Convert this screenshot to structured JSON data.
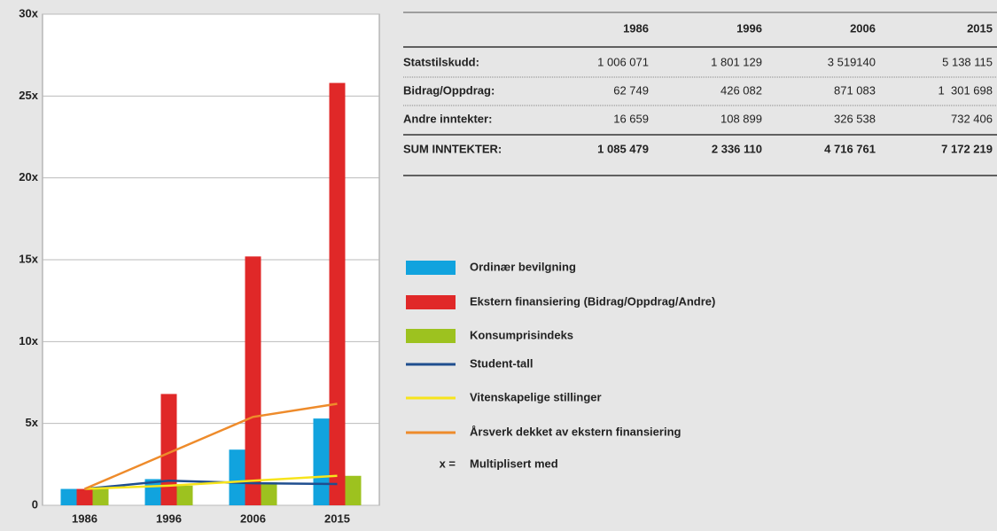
{
  "chart_data": {
    "type": "bar",
    "categories": [
      "1986",
      "1996",
      "2006",
      "2015"
    ],
    "series": [
      {
        "name": "Ordinær bevilgning",
        "type": "bar",
        "color": "#11a3de",
        "values": [
          1,
          1.6,
          3.4,
          5.3
        ]
      },
      {
        "name": "Ekstern finansiering (Bidrag/Oppdrag/Andre)",
        "type": "bar",
        "color": "#e02828",
        "values": [
          1,
          6.8,
          15.2,
          25.8
        ]
      },
      {
        "name": "Konsumprisindeks",
        "type": "bar",
        "color": "#9dc21f",
        "values": [
          1,
          1.2,
          1.4,
          1.8
        ]
      },
      {
        "name": "Student-tall",
        "type": "line",
        "color": "#1f4e8f",
        "values": [
          1,
          1.5,
          1.35,
          1.3
        ]
      },
      {
        "name": "Vitenskapelige stillinger",
        "type": "line",
        "color": "#f7e41c",
        "values": [
          1,
          1.2,
          1.5,
          1.8
        ]
      },
      {
        "name": "Årsverk dekket av ekstern finansiering",
        "type": "line",
        "color": "#ee8b2b",
        "values": [
          1,
          3.2,
          5.4,
          6.2
        ]
      }
    ],
    "ylim": [
      0,
      30
    ],
    "yticks": [
      0,
      {
        "value": 5,
        "label": "5x"
      },
      {
        "value": 10,
        "label": "10x"
      },
      {
        "value": 15,
        "label": "15x"
      },
      {
        "value": 20,
        "label": "20x"
      },
      {
        "value": 25,
        "label": "25x"
      },
      {
        "value": 30,
        "label": "30x"
      }
    ],
    "grid": true
  },
  "table": {
    "columns": [
      "1986",
      "1996",
      "2006",
      "2015"
    ],
    "rows": [
      [
        "Statstilskudd:",
        "1 006 071",
        "1 801 129",
        "3 519140",
        "5 138 115"
      ],
      [
        "Bidrag/Oppdrag:",
        "62 749",
        "426 082",
        "871 083",
        "1  301 698"
      ],
      [
        "Andre inntekter:",
        "16 659",
        "108 899",
        "326 538",
        "732 406"
      ],
      [
        "SUM INNTEKTER:",
        "1 085 479",
        "2 336 110",
        "4 716 761",
        "7 172 219"
      ]
    ]
  },
  "note": {
    "symbol": "x =",
    "text": "Multiplisert med"
  }
}
